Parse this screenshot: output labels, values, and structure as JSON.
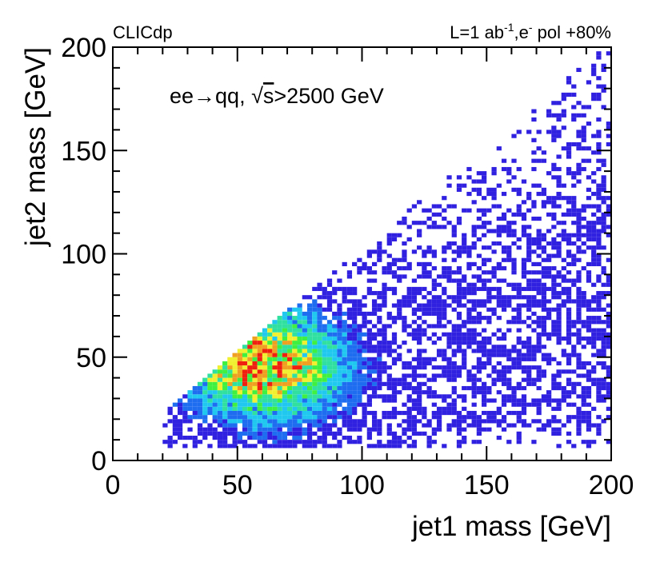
{
  "chart_data": {
    "type": "heatmap",
    "experiment_label": "CLICdp",
    "luminosity_label": "L=1 ab",
    "luminosity_unit_exp": "-1",
    "polarization_label": ",e",
    "polarization_sup": "-",
    "polarization_value": " pol +80%",
    "process_label": "ee→qq, ",
    "sqrt_symbol": "√",
    "sqrt_arg": "s",
    "cut_label": ">2500 GeV",
    "xlabel": "jet1 mass [GeV]",
    "ylabel": "jet2 mass [GeV]",
    "xlim": [
      0,
      200
    ],
    "ylim": [
      0,
      200
    ],
    "xticks": [
      0,
      50,
      100,
      150,
      200
    ],
    "yticks": [
      0,
      50,
      100,
      150,
      200
    ],
    "bin_width": 2,
    "bin_height": 2,
    "color_scale": [
      "#3020e0",
      "#1e6cf0",
      "#20c8f0",
      "#30e0a0",
      "#40f040",
      "#f0f030",
      "#f0a020",
      "#f02010"
    ],
    "density_model": {
      "peak_jet1": 60,
      "peak_jet2": 45,
      "region": "jet2 < jet1 + 2",
      "note": "binned density, estimated from the image"
    }
  }
}
